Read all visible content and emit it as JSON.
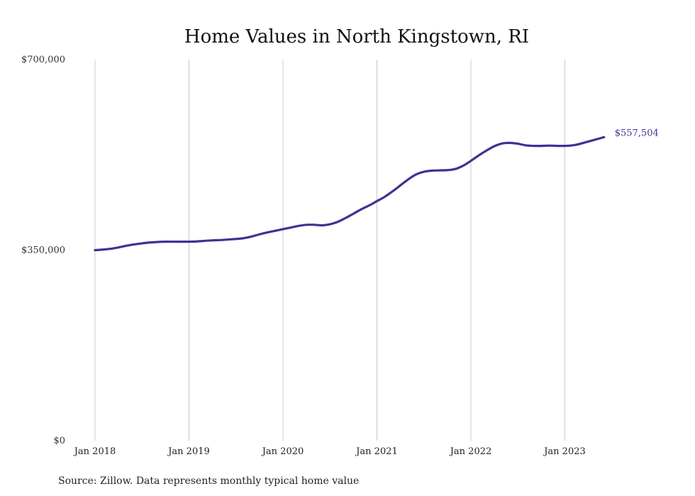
{
  "chart_data": {
    "type": "line",
    "title": "Home Values in North Kingstown, RI",
    "xlabel": "",
    "ylabel": "",
    "ylim": [
      0,
      700000
    ],
    "yticks": [
      {
        "value": 0,
        "label": "$0"
      },
      {
        "value": 350000,
        "label": "$350,000"
      },
      {
        "value": 700000,
        "label": "$700,000"
      }
    ],
    "xticks": [
      {
        "value": "2018-01",
        "label": "Jan 2018"
      },
      {
        "value": "2019-01",
        "label": "Jan 2019"
      },
      {
        "value": "2020-01",
        "label": "Jan 2020"
      },
      {
        "value": "2021-01",
        "label": "Jan 2021"
      },
      {
        "value": "2022-01",
        "label": "Jan 2022"
      },
      {
        "value": "2023-01",
        "label": "Jan 2023"
      }
    ],
    "grid": {
      "vertical": true,
      "horizontal": false
    },
    "legend": "none",
    "colors": {
      "line": "#3b3494",
      "grid": "#c8c8c8"
    },
    "series": [
      {
        "points": [
          [
            "2018-01",
            350000
          ],
          [
            "2018-02",
            351000
          ],
          [
            "2018-03",
            352500
          ],
          [
            "2018-04",
            355000
          ],
          [
            "2018-05",
            358000
          ],
          [
            "2018-06",
            360500
          ],
          [
            "2018-07",
            362500
          ],
          [
            "2018-08",
            364000
          ],
          [
            "2018-09",
            365000
          ],
          [
            "2018-10",
            365500
          ],
          [
            "2018-11",
            365500
          ],
          [
            "2018-12",
            365500
          ],
          [
            "2019-01",
            365500
          ],
          [
            "2019-02",
            366000
          ],
          [
            "2019-03",
            367000
          ],
          [
            "2019-04",
            368000
          ],
          [
            "2019-05",
            368500
          ],
          [
            "2019-06",
            369500
          ],
          [
            "2019-07",
            370500
          ],
          [
            "2019-08",
            372000
          ],
          [
            "2019-09",
            375000
          ],
          [
            "2019-10",
            379000
          ],
          [
            "2019-11",
            382500
          ],
          [
            "2019-12",
            385500
          ],
          [
            "2020-01",
            388500
          ],
          [
            "2020-02",
            391500
          ],
          [
            "2020-03",
            394500
          ],
          [
            "2020-04",
            396500
          ],
          [
            "2020-05",
            396500
          ],
          [
            "2020-06",
            395500
          ],
          [
            "2020-07",
            397500
          ],
          [
            "2020-08",
            402000
          ],
          [
            "2020-09",
            409000
          ],
          [
            "2020-10",
            417000
          ],
          [
            "2020-11",
            425000
          ],
          [
            "2020-12",
            432000
          ],
          [
            "2021-01",
            440000
          ],
          [
            "2021-02",
            448000
          ],
          [
            "2021-03",
            458000
          ],
          [
            "2021-04",
            469000
          ],
          [
            "2021-05",
            480000
          ],
          [
            "2021-06",
            489000
          ],
          [
            "2021-07",
            494000
          ],
          [
            "2021-08",
            496000
          ],
          [
            "2021-09",
            496500
          ],
          [
            "2021-10",
            497000
          ],
          [
            "2021-11",
            499000
          ],
          [
            "2021-12",
            505000
          ],
          [
            "2022-01",
            514000
          ],
          [
            "2022-02",
            524000
          ],
          [
            "2022-03",
            533000
          ],
          [
            "2022-04",
            541000
          ],
          [
            "2022-05",
            546000
          ],
          [
            "2022-06",
            547000
          ],
          [
            "2022-07",
            545500
          ],
          [
            "2022-08",
            542500
          ],
          [
            "2022-09",
            541500
          ],
          [
            "2022-10",
            541500
          ],
          [
            "2022-11",
            542000
          ],
          [
            "2022-12",
            541500
          ],
          [
            "2023-01",
            541500
          ],
          [
            "2023-02",
            542500
          ],
          [
            "2023-03",
            545500
          ],
          [
            "2023-04",
            549500
          ],
          [
            "2023-05",
            553500
          ],
          [
            "2023-06",
            557500
          ]
        ],
        "end_label": "$557,504"
      }
    ],
    "source": "Source: Zillow. Data represents monthly typical home value"
  }
}
